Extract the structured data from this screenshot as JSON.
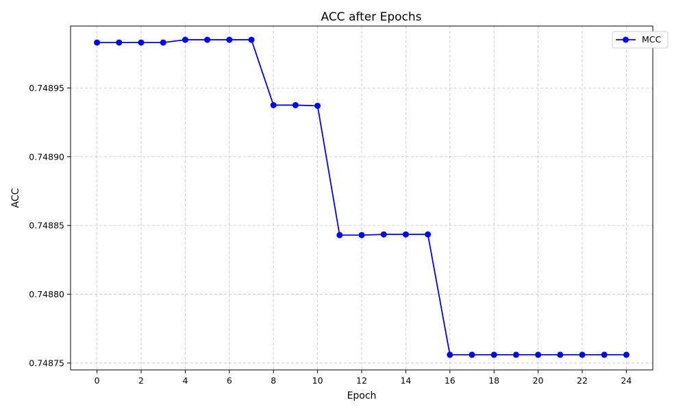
{
  "chart_data": {
    "type": "line",
    "title": "ACC after Epochs",
    "xlabel": "Epoch",
    "ylabel": "ACC",
    "xlim": [
      -1.2,
      25.2
    ],
    "ylim": [
      0.748745,
      0.748995
    ],
    "xticks": [
      "0",
      "2",
      "4",
      "6",
      "8",
      "10",
      "12",
      "14",
      "16",
      "18",
      "20",
      "22",
      "24"
    ],
    "yticks": [
      "0.74875",
      "0.74880",
      "0.74885",
      "0.74890",
      "0.74895"
    ],
    "grid": true,
    "legend_position": "top-right",
    "series": [
      {
        "name": "MCC",
        "color": "#0000ee",
        "marker": "circle",
        "x": [
          0,
          1,
          2,
          3,
          4,
          5,
          6,
          7,
          8,
          9,
          10,
          11,
          12,
          13,
          14,
          15,
          16,
          17,
          18,
          19,
          20,
          21,
          22,
          23,
          24
        ],
        "y": [
          0.748983,
          0.748983,
          0.748983,
          0.748983,
          0.748985,
          0.748985,
          0.748985,
          0.748985,
          0.7489375,
          0.7489375,
          0.748937,
          0.748843,
          0.748843,
          0.7488435,
          0.7488435,
          0.7488435,
          0.748756,
          0.748756,
          0.748756,
          0.748756,
          0.748756,
          0.748756,
          0.748756,
          0.748756,
          0.748756
        ]
      }
    ]
  }
}
